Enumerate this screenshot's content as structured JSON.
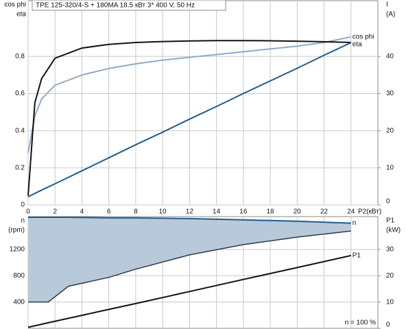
{
  "chart_data": [
    {
      "type": "line",
      "title": "TPE 125-320/4-S + 180MA    18.5 кВт   3* 400 V, 50 Hz",
      "ylabel": [
        "cos phi",
        "eta"
      ],
      "y2label": [
        "I",
        "(A)"
      ],
      "xlabel": "P2(кВт)",
      "x": [
        0,
        0.5,
        1,
        2,
        4,
        6,
        8,
        10,
        12,
        14,
        16,
        18,
        20,
        22,
        24
      ],
      "xlim": [
        0,
        26
      ],
      "xticks": [
        0,
        2,
        4,
        6,
        8,
        10,
        12,
        14,
        16,
        18,
        20,
        22,
        24
      ],
      "ylim": [
        0,
        1.1
      ],
      "yticks": [
        0,
        0.2,
        0.4,
        0.6,
        0.8
      ],
      "y2lim": [
        0,
        55
      ],
      "y2ticks": [
        0,
        10,
        20,
        30,
        40
      ],
      "grid": true,
      "series": [
        {
          "name": "cos phi",
          "color": "#8eaac8",
          "values": [
            0.28,
            0.48,
            0.57,
            0.645,
            0.7,
            0.735,
            0.76,
            0.78,
            0.795,
            0.81,
            0.825,
            0.84,
            0.855,
            0.875,
            0.905
          ]
        },
        {
          "name": "eta",
          "color": "#111111",
          "values": [
            0.05,
            0.55,
            0.68,
            0.79,
            0.845,
            0.865,
            0.875,
            0.88,
            0.883,
            0.885,
            0.885,
            0.884,
            0.882,
            0.879,
            0.875
          ]
        },
        {
          "color": "#1f5a8c",
          "axis": "y2",
          "values": [
            2.2,
            3.1,
            4,
            5.7,
            9.2,
            12.7,
            16.2,
            19.6,
            23.1,
            26.5,
            30,
            33.4,
            36.8,
            40.3,
            43.7
          ]
        }
      ]
    },
    {
      "type": "area",
      "ylabel": [
        "n",
        "(rpm)"
      ],
      "y2label": [
        "P1",
        "(kW)"
      ],
      "annotation": "n  = 100 %",
      "x": [
        0,
        1.5,
        3,
        6,
        8,
        12,
        16,
        20,
        24
      ],
      "xlim": [
        0,
        26
      ],
      "ylim": [
        0,
        1700
      ],
      "yticks": [
        400,
        800,
        1200
      ],
      "y2lim": [
        0,
        42.5
      ],
      "y2ticks": [
        0,
        10,
        20,
        30
      ],
      "grid": true,
      "series": [
        {
          "name": "n",
          "color": "#1f5a8c",
          "fill": "#b8c9da",
          "lower_color": "#2a3a4a",
          "values": [
            1690,
            1690,
            1690,
            1680,
            1680,
            1670,
            1650,
            1630,
            1600
          ],
          "lower": [
            400,
            400,
            640,
            775,
            900,
            1117,
            1273,
            1387,
            1480
          ]
        },
        {
          "name": "P1",
          "color": "#111111",
          "axis": "y2",
          "values": [
            0.4,
            2.1,
            3.8,
            7.2,
            9.4,
            14,
            18.6,
            23.1,
            27.7
          ]
        }
      ]
    }
  ]
}
